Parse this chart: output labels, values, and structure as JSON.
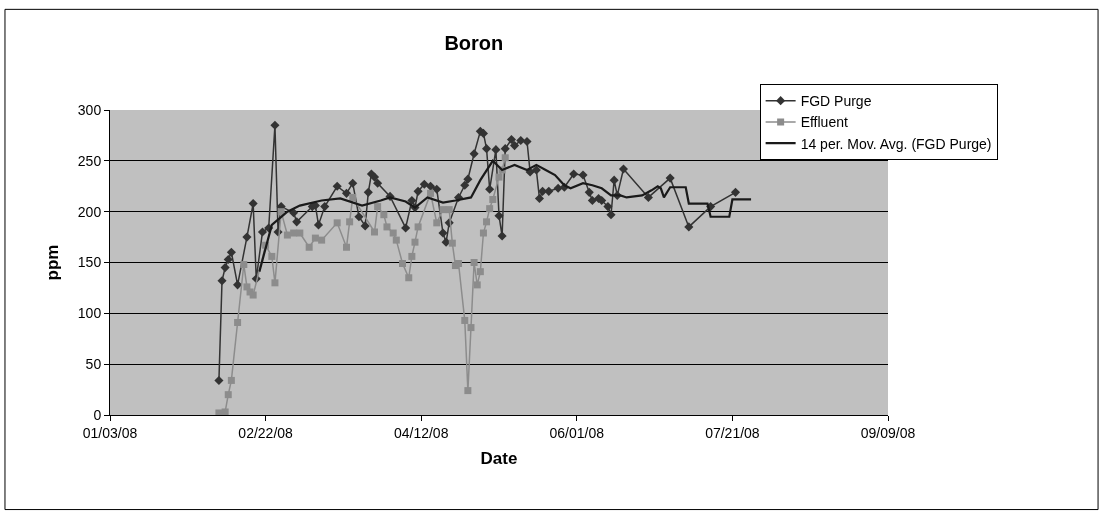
{
  "chart_data": {
    "type": "line",
    "title": "Boron",
    "xlabel": "Date",
    "ylabel": "ppm",
    "xlim": [
      "2008-01-03",
      "2008-09-09"
    ],
    "xticks": [
      {
        "value": "2008-01-03",
        "label": "01/03/08"
      },
      {
        "value": "2008-02-22",
        "label": "02/22/08"
      },
      {
        "value": "2008-04-12",
        "label": "04/12/08"
      },
      {
        "value": "2008-06-01",
        "label": "06/01/08"
      },
      {
        "value": "2008-07-21",
        "label": "07/21/08"
      },
      {
        "value": "2008-09-09",
        "label": "09/09/08"
      }
    ],
    "ylim": [
      0,
      300
    ],
    "yticks": [
      0,
      50,
      100,
      150,
      200,
      250,
      300
    ],
    "grid": "y",
    "legend": "top right",
    "series": [
      {
        "name": "FGD Purge",
        "color": "#333333",
        "marker": "diamond",
        "x": [
          "2008-02-07",
          "2008-02-08",
          "2008-02-09",
          "2008-02-10",
          "2008-02-11",
          "2008-02-13",
          "2008-02-16",
          "2008-02-18",
          "2008-02-19",
          "2008-02-21",
          "2008-02-23",
          "2008-02-25",
          "2008-02-26",
          "2008-02-27",
          "2008-03-02",
          "2008-03-03",
          "2008-03-08",
          "2008-03-09",
          "2008-03-10",
          "2008-03-12",
          "2008-03-16",
          "2008-03-19",
          "2008-03-21",
          "2008-03-23",
          "2008-03-25",
          "2008-03-26",
          "2008-03-27",
          "2008-03-28",
          "2008-03-29",
          "2008-04-02",
          "2008-04-07",
          "2008-04-09",
          "2008-04-10",
          "2008-04-11",
          "2008-04-13",
          "2008-04-15",
          "2008-04-17",
          "2008-04-19",
          "2008-04-20",
          "2008-04-21",
          "2008-04-24",
          "2008-04-26",
          "2008-04-27",
          "2008-04-29",
          "2008-05-01",
          "2008-05-02",
          "2008-05-03",
          "2008-05-04",
          "2008-05-06",
          "2008-05-07",
          "2008-05-08",
          "2008-05-09",
          "2008-05-11",
          "2008-05-12",
          "2008-05-14",
          "2008-05-16",
          "2008-05-17",
          "2008-05-19",
          "2008-05-20",
          "2008-05-21",
          "2008-05-23",
          "2008-05-26",
          "2008-05-28",
          "2008-05-31",
          "2008-06-03",
          "2008-06-05",
          "2008-06-06",
          "2008-06-08",
          "2008-06-09",
          "2008-06-11",
          "2008-06-12",
          "2008-06-13",
          "2008-06-14",
          "2008-06-16",
          "2008-06-24",
          "2008-07-01",
          "2008-07-07",
          "2008-07-14",
          "2008-07-22"
        ],
        "values": [
          34,
          132,
          145,
          153,
          160,
          128,
          175,
          208,
          134,
          180,
          184,
          285,
          180,
          205,
          199,
          190,
          205,
          206,
          187,
          205,
          225,
          218,
          228,
          195,
          186,
          219,
          237,
          234,
          228,
          215,
          184,
          211,
          204,
          220,
          227,
          225,
          222,
          179,
          170,
          189,
          214,
          226,
          232,
          257,
          279,
          277,
          262,
          222,
          261,
          196,
          176,
          262,
          271,
          265,
          270,
          269,
          239,
          241,
          213,
          220,
          220,
          223,
          224,
          237,
          236,
          219,
          211,
          213,
          211,
          205,
          197,
          231,
          216,
          242,
          214,
          233,
          185,
          205,
          219
        ]
      },
      {
        "name": "Effluent",
        "color": "#8c8c8c",
        "marker": "square",
        "x": [
          "2008-02-07",
          "2008-02-09",
          "2008-02-10",
          "2008-02-11",
          "2008-02-13",
          "2008-02-15",
          "2008-02-16",
          "2008-02-17",
          "2008-02-18",
          "2008-02-22",
          "2008-02-24",
          "2008-02-25",
          "2008-02-27",
          "2008-02-29",
          "2008-03-02",
          "2008-03-04",
          "2008-03-07",
          "2008-03-09",
          "2008-03-11",
          "2008-03-16",
          "2008-03-19",
          "2008-03-20",
          "2008-03-21",
          "2008-03-28",
          "2008-03-29",
          "2008-03-31",
          "2008-04-01",
          "2008-04-03",
          "2008-04-04",
          "2008-04-06",
          "2008-04-08",
          "2008-04-09",
          "2008-04-10",
          "2008-04-11",
          "2008-04-15",
          "2008-04-17",
          "2008-04-19",
          "2008-04-21",
          "2008-04-22",
          "2008-04-23",
          "2008-04-24",
          "2008-04-26",
          "2008-04-27",
          "2008-04-28",
          "2008-04-29",
          "2008-04-30",
          "2008-05-01",
          "2008-05-02",
          "2008-05-03",
          "2008-05-04",
          "2008-05-05",
          "2008-05-07",
          "2008-05-08",
          "2008-05-09"
        ],
        "values": [
          2,
          3,
          20,
          34,
          91,
          148,
          126,
          121,
          118,
          167,
          156,
          130,
          200,
          177,
          179,
          179,
          165,
          174,
          172,
          189,
          165,
          190,
          214,
          180,
          205,
          197,
          185,
          179,
          172,
          149,
          135,
          156,
          170,
          185,
          218,
          189,
          202,
          202,
          169,
          147,
          149,
          93,
          24,
          86,
          150,
          128,
          141,
          179,
          190,
          203,
          212,
          234,
          241,
          253
        ]
      },
      {
        "name": "14 per. Mov. Avg. (FGD Purge)",
        "color": "#1a1a1a",
        "marker": "none",
        "x": [
          "2008-02-20",
          "2008-02-24",
          "2008-02-29",
          "2008-03-04",
          "2008-03-11",
          "2008-03-17",
          "2008-03-24",
          "2008-03-30",
          "2008-04-02",
          "2008-04-07",
          "2008-04-10",
          "2008-04-14",
          "2008-04-19",
          "2008-04-23",
          "2008-04-28",
          "2008-05-01",
          "2008-05-05",
          "2008-05-08",
          "2008-05-12",
          "2008-05-16",
          "2008-05-19",
          "2008-05-22",
          "2008-05-25",
          "2008-05-28",
          "2008-05-30",
          "2008-06-03",
          "2008-06-06",
          "2008-06-09",
          "2008-06-12",
          "2008-06-15",
          "2008-06-17",
          "2008-06-22",
          "2008-06-25",
          "2008-06-27",
          "2008-06-28",
          "2008-06-29",
          "2008-07-01",
          "2008-07-06",
          "2008-07-07",
          "2008-07-13",
          "2008-07-14",
          "2008-07-20",
          "2008-07-21",
          "2008-07-27"
        ],
        "values": [
          141,
          187,
          200,
          206,
          211,
          213,
          206,
          211,
          214,
          210,
          204,
          214,
          209,
          211,
          214,
          231,
          250,
          241,
          246,
          241,
          246,
          241,
          236,
          226,
          223,
          228,
          226,
          223,
          216,
          216,
          214,
          216,
          221,
          225,
          223,
          214,
          224,
          224,
          208,
          208,
          195,
          195,
          212,
          212
        ]
      }
    ]
  }
}
